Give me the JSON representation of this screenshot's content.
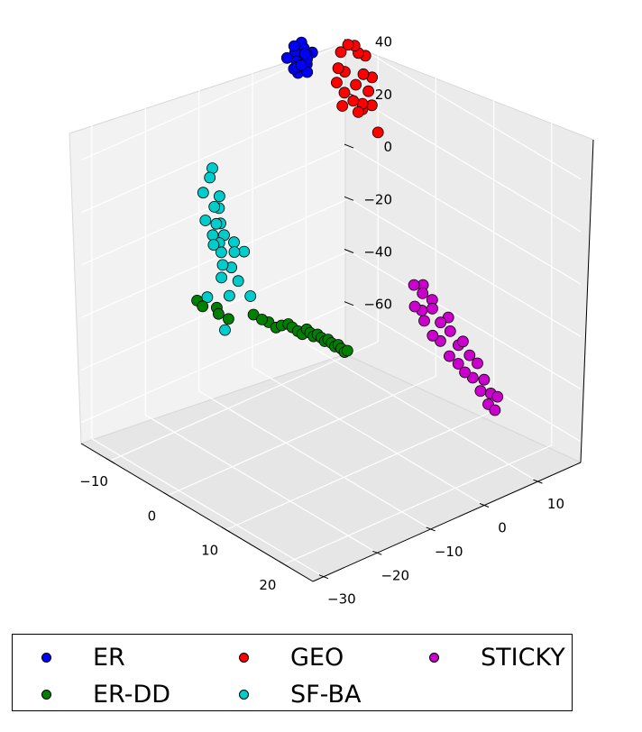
{
  "chart_data": {
    "type": "scatter",
    "projection": "3d",
    "grid": true,
    "legend_position": "bottom",
    "axes": {
      "x": {
        "ticks": [
          "−10",
          "0",
          "10",
          "20"
        ],
        "range": [
          -15,
          25
        ]
      },
      "y": {
        "ticks": [
          "−30",
          "−20",
          "−10",
          "0",
          "10"
        ],
        "range": [
          -32,
          18
        ]
      },
      "z": {
        "ticks": [
          "−60",
          "−40",
          "−20",
          "0",
          "20",
          "40"
        ],
        "range": [
          -68,
          55
        ]
      }
    },
    "series": [
      {
        "name": "ER",
        "color": "#0000ff",
        "points": [
          [
            -13.2,
            6.0,
            49
          ],
          [
            -12.5,
            5.5,
            47
          ],
          [
            -12.8,
            7.2,
            50
          ],
          [
            -11.6,
            6.5,
            48
          ],
          [
            -12.0,
            5.0,
            46
          ],
          [
            -13.5,
            7.5,
            51
          ],
          [
            -11.2,
            6.1,
            44
          ],
          [
            -12.3,
            4.8,
            45
          ],
          [
            -13.0,
            5.6,
            52
          ],
          [
            -11.9,
            7.8,
            49
          ],
          [
            -12.7,
            6.8,
            43
          ],
          [
            -11.5,
            5.3,
            47
          ],
          [
            -13.3,
            4.6,
            48
          ],
          [
            -12.1,
            7.0,
            45
          ],
          [
            -11.8,
            6.3,
            50
          ],
          [
            -12.6,
            5.9,
            42
          ],
          [
            -13.1,
            6.6,
            46
          ],
          [
            -12.4,
            7.3,
            48
          ]
        ]
      },
      {
        "name": "GEO",
        "color": "#ff0000",
        "points": [
          [
            -11.0,
            13.5,
            48
          ],
          [
            -10.8,
            14.5,
            47
          ],
          [
            -11.6,
            12.8,
            45
          ],
          [
            -10.6,
            15.0,
            44
          ],
          [
            -11.3,
            12.0,
            40
          ],
          [
            -10.5,
            16.2,
            42
          ],
          [
            -11.1,
            13.0,
            38
          ],
          [
            -10.2,
            15.5,
            36
          ],
          [
            -11.2,
            11.6,
            35
          ],
          [
            -9.9,
            16.8,
            34
          ],
          [
            -10.3,
            14.2,
            33
          ],
          [
            -10.7,
            12.5,
            31
          ],
          [
            -9.6,
            15.8,
            30
          ],
          [
            -10.0,
            13.4,
            28
          ],
          [
            -10.4,
            11.8,
            27
          ],
          [
            -9.7,
            14.8,
            26
          ],
          [
            -9.2,
            16.0,
            25
          ],
          [
            -9.5,
            13.8,
            24
          ],
          [
            -10.1,
            15.2,
            23
          ],
          [
            -8.6,
            16.5,
            15
          ]
        ]
      },
      {
        "name": "SF-BA",
        "color": "#00cccc",
        "points": [
          [
            -12.7,
            -10.0,
            20
          ],
          [
            -12.2,
            -11.0,
            18
          ],
          [
            -11.0,
            -10.5,
            12
          ],
          [
            -11.5,
            -13.0,
            15
          ],
          [
            -10.5,
            -12.0,
            10
          ],
          [
            -10.8,
            -10.8,
            8
          ],
          [
            -10.2,
            -14.0,
            7
          ],
          [
            -9.7,
            -12.5,
            5
          ],
          [
            -9.9,
            -11.5,
            4
          ],
          [
            -9.4,
            -13.5,
            2
          ],
          [
            -9.0,
            -11.8,
            1
          ],
          [
            -8.6,
            -14.2,
            0
          ],
          [
            -8.9,
            -12.8,
            -1
          ],
          [
            -8.4,
            -10.6,
            -2
          ],
          [
            -8.1,
            -13.3,
            -3
          ],
          [
            -7.6,
            -11.4,
            -4
          ],
          [
            -7.2,
            -14.0,
            -6
          ],
          [
            -7.4,
            -9.8,
            -5
          ],
          [
            -7.0,
            -12.6,
            -8
          ],
          [
            -6.5,
            -15.0,
            -9
          ],
          [
            -6.0,
            -12.4,
            -12
          ],
          [
            -5.5,
            -14.6,
            -15
          ],
          [
            -5.2,
            -11.0,
            -18
          ],
          [
            -8.2,
            -15.8,
            -18
          ],
          [
            -4.5,
            -16.5,
            -25
          ]
        ]
      },
      {
        "name": "STICKY",
        "color": "#cc00cc",
        "points": [
          [
            5.0,
            8.5,
            -18
          ],
          [
            5.3,
            9.8,
            -22
          ],
          [
            5.6,
            8.0,
            -25
          ],
          [
            4.8,
            10.4,
            -20
          ],
          [
            5.9,
            9.0,
            -27
          ],
          [
            6.2,
            10.6,
            -24
          ],
          [
            6.5,
            8.8,
            -30
          ],
          [
            6.8,
            10.0,
            -26
          ],
          [
            7.1,
            11.2,
            -32
          ],
          [
            7.4,
            9.4,
            -35
          ],
          [
            7.7,
            12.0,
            -30
          ],
          [
            8.0,
            10.2,
            -37
          ],
          [
            8.4,
            11.6,
            -34
          ],
          [
            8.7,
            12.8,
            -40
          ],
          [
            9.0,
            10.8,
            -42
          ],
          [
            9.3,
            13.0,
            -38
          ],
          [
            9.6,
            11.8,
            -45
          ],
          [
            9.9,
            13.6,
            -43
          ],
          [
            10.2,
            12.4,
            -48
          ],
          [
            10.5,
            14.4,
            -46
          ],
          [
            10.8,
            13.2,
            -50
          ],
          [
            11.1,
            15.0,
            -52
          ],
          [
            11.4,
            14.0,
            -55
          ],
          [
            11.7,
            15.6,
            -57
          ],
          [
            12.0,
            14.8,
            -60
          ],
          [
            12.3,
            16.2,
            -58
          ],
          [
            12.6,
            15.4,
            -62
          ]
        ]
      },
      {
        "name": "ER-DD",
        "color": "#008000",
        "points": [
          [
            -1.0,
            -25.5,
            -1
          ],
          [
            -0.5,
            -25.0,
            -3
          ],
          [
            1.2,
            -24.2,
            -2
          ],
          [
            2.8,
            -25.6,
            -1
          ],
          [
            3.5,
            -24.5,
            -3
          ],
          [
            5.5,
            -22.0,
            -1
          ],
          [
            6.5,
            -21.5,
            -2
          ],
          [
            7.0,
            -20.8,
            -3
          ],
          [
            8.0,
            -20.5,
            -4
          ],
          [
            8.5,
            -20.0,
            -3
          ],
          [
            9.2,
            -19.5,
            -2
          ],
          [
            9.6,
            -19.2,
            -3
          ],
          [
            10.2,
            -18.8,
            -4
          ],
          [
            10.6,
            -18.4,
            -5
          ],
          [
            11.0,
            -18.0,
            -3
          ],
          [
            11.4,
            -17.8,
            -4
          ],
          [
            11.8,
            -17.6,
            -5
          ],
          [
            12.2,
            -17.3,
            -4
          ],
          [
            12.6,
            -17.0,
            -5
          ],
          [
            13.0,
            -16.8,
            -6
          ],
          [
            13.4,
            -16.6,
            -5
          ],
          [
            13.8,
            -16.4,
            -6
          ],
          [
            14.2,
            -16.2,
            -7
          ],
          [
            14.6,
            -16.0,
            -6
          ],
          [
            15.0,
            -15.9,
            -7
          ],
          [
            15.4,
            -15.7,
            -8
          ],
          [
            15.8,
            -15.6,
            -7
          ]
        ]
      }
    ]
  },
  "legend": {
    "items": [
      {
        "label": "ER",
        "color": "#0000ff"
      },
      {
        "label": "GEO",
        "color": "#ff0000"
      },
      {
        "label": "STICKY",
        "color": "#cc00cc"
      },
      {
        "label": "ER-DD",
        "color": "#008000"
      },
      {
        "label": "SF-BA",
        "color": "#00cccc"
      }
    ]
  }
}
